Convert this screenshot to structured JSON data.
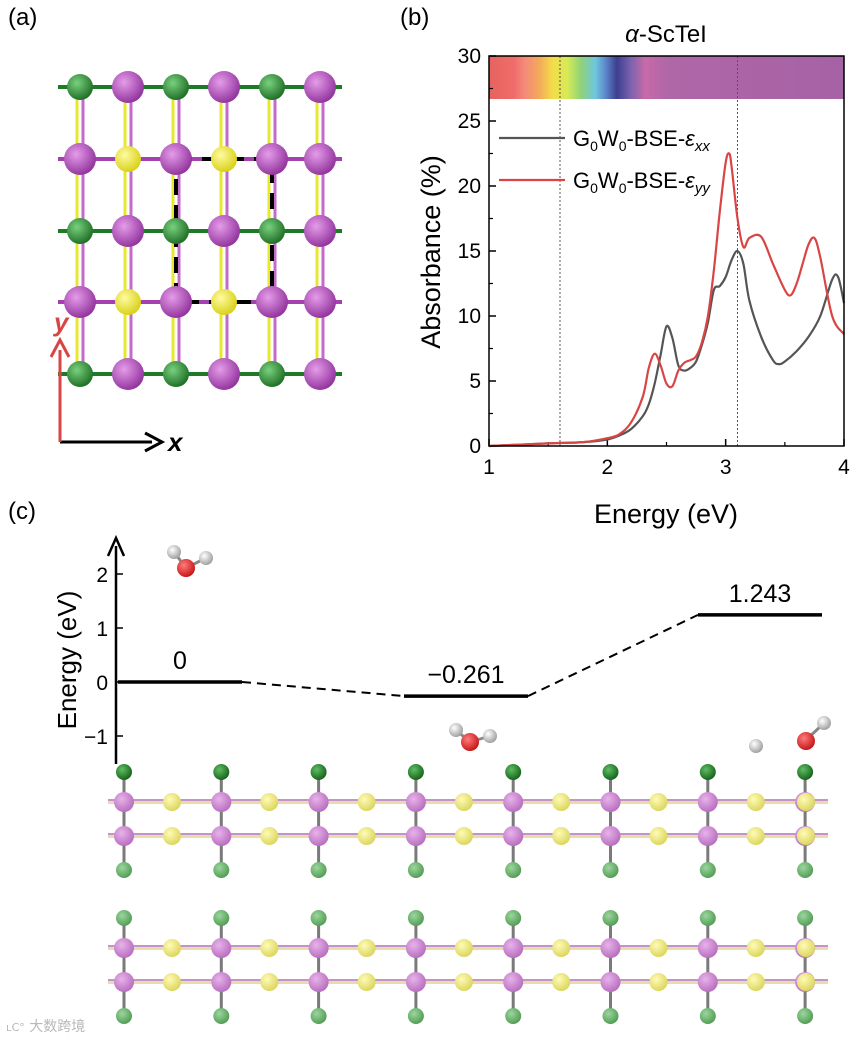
{
  "panel_labels": {
    "a": "(a)",
    "b": "(b)",
    "c": "(c)"
  },
  "axes_a": {
    "x": "x",
    "y": "y"
  },
  "colors": {
    "sc_atom": "#8e2f9a",
    "te_atom": "#e8e62d",
    "i_atom": "#1f7a28",
    "xx_line": "#555555",
    "yy_line": "#d94545",
    "axis_red": "#d94545"
  },
  "watermark": "大数跨境",
  "chart_data": [
    {
      "type": "line",
      "title": "α-ScTeI",
      "title_prefix": "α",
      "title_suffix": "-ScTeI",
      "xlabel": "Energy (eV)",
      "ylabel": "Absorbance (%)",
      "xlim": [
        1,
        4
      ],
      "ylim": [
        0,
        30
      ],
      "xticks": [
        1,
        2,
        3,
        4
      ],
      "yticks": [
        0,
        5,
        10,
        15,
        20,
        25,
        30
      ],
      "vlines": [
        1.6,
        3.1
      ],
      "legend_position": "top-right",
      "series": [
        {
          "name": "G0W0-BSE-εxx",
          "legend_main": "G",
          "legend_sub1": "0",
          "legend_mid": "W",
          "legend_sub2": "0",
          "legend_tail": "-BSE-",
          "legend_eps": "ε",
          "legend_eps_sub": "xx",
          "color": "#555555",
          "x": [
            1.0,
            1.5,
            1.8,
            2.0,
            2.1,
            2.2,
            2.3,
            2.35,
            2.4,
            2.45,
            2.5,
            2.55,
            2.6,
            2.65,
            2.7,
            2.75,
            2.8,
            2.85,
            2.9,
            2.95,
            3.0,
            3.05,
            3.1,
            3.15,
            3.2,
            3.3,
            3.4,
            3.45,
            3.5,
            3.6,
            3.7,
            3.8,
            3.9,
            3.95,
            4.0
          ],
          "y": [
            0.0,
            0.2,
            0.3,
            0.5,
            0.8,
            1.3,
            2.3,
            3.2,
            4.8,
            7.0,
            9.2,
            8.3,
            6.2,
            5.8,
            6.0,
            6.5,
            7.8,
            9.5,
            12.0,
            12.3,
            13.0,
            14.3,
            15.0,
            14.0,
            11.2,
            8.4,
            6.6,
            6.3,
            6.5,
            7.3,
            8.4,
            10.0,
            12.8,
            13.0,
            11.0
          ]
        },
        {
          "name": "G0W0-BSE-εyy",
          "legend_main": "G",
          "legend_sub1": "0",
          "legend_mid": "W",
          "legend_sub2": "0",
          "legend_tail": "-BSE-",
          "legend_eps": "ε",
          "legend_eps_sub": "yy",
          "color": "#d94545",
          "x": [
            1.0,
            1.5,
            1.8,
            2.0,
            2.1,
            2.2,
            2.3,
            2.35,
            2.4,
            2.45,
            2.5,
            2.55,
            2.6,
            2.65,
            2.7,
            2.75,
            2.8,
            2.85,
            2.9,
            2.95,
            3.0,
            3.03,
            3.05,
            3.1,
            3.15,
            3.2,
            3.3,
            3.4,
            3.5,
            3.55,
            3.6,
            3.65,
            3.7,
            3.75,
            3.8,
            3.9,
            4.0
          ],
          "y": [
            0.0,
            0.2,
            0.3,
            0.6,
            0.9,
            1.8,
            3.8,
            6.0,
            7.1,
            6.2,
            4.8,
            4.6,
            5.8,
            6.4,
            6.6,
            6.9,
            8.0,
            10.0,
            13.5,
            18.0,
            21.8,
            22.5,
            21.5,
            17.5,
            15.3,
            16.0,
            16.1,
            14.0,
            12.0,
            11.6,
            12.5,
            14.0,
            15.5,
            16.0,
            14.5,
            10.0,
            8.6
          ]
        }
      ]
    },
    {
      "type": "line",
      "title": "",
      "ylabel": "Energy (eV)",
      "yticks": [
        -1,
        0,
        1,
        2
      ],
      "ylim": [
        -1.4,
        2.9
      ],
      "states": [
        {
          "label": "0",
          "value": 0
        },
        {
          "label": "−0.261",
          "value": -0.261
        },
        {
          "label": "1.243",
          "value": 1.243
        }
      ]
    }
  ]
}
